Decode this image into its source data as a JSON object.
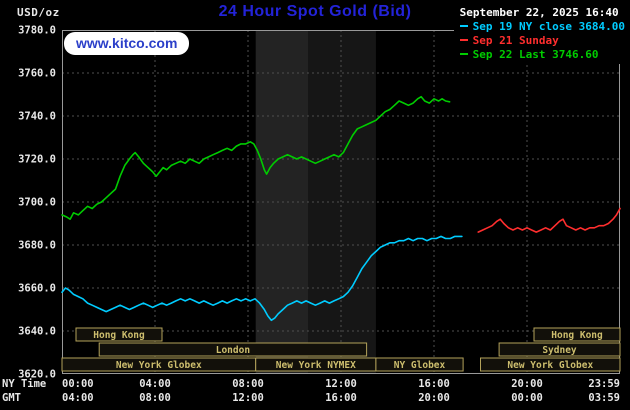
{
  "header": {
    "unit_label": "USD/oz",
    "title": "24 Hour Spot Gold (Bid)",
    "datetime": "September 22, 2025 16:40",
    "watermark": "www.kitco.com"
  },
  "legend": [
    {
      "label": "Sep 19 NY close 3684.00",
      "color": "#00ccff"
    },
    {
      "label": "Sep 21 Sunday",
      "color": "#ff2e2e"
    },
    {
      "label": "Sep 22 Last 3746.60",
      "color": "#00cc00"
    }
  ],
  "axes": {
    "y_ticks": [
      "3780.0",
      "3760.0",
      "3740.0",
      "3720.0",
      "3700.0",
      "3680.0",
      "3660.0",
      "3640.0",
      "3620.0"
    ],
    "x_ny_axis_label": "NY Time",
    "x_gmt_axis_label": "GMT",
    "x_ny_ticks": [
      "00:00",
      "04:00",
      "08:00",
      "12:00",
      "16:00",
      "20:00",
      "23:59"
    ],
    "x_gmt_ticks": [
      "04:00",
      "08:00",
      "12:00",
      "16:00",
      "20:00",
      "00:00",
      "03:59"
    ]
  },
  "sessions": [
    {
      "label": "Hong Kong",
      "row": 0,
      "start_hour": 0.6,
      "end_hour": 4.3
    },
    {
      "label": "Hong Kong",
      "row": 0,
      "start_hour": 20.3,
      "end_hour": 24
    },
    {
      "label": "London",
      "row": 1,
      "start_hour": 1.6,
      "end_hour": 13.1
    },
    {
      "label": "Sydney",
      "row": 1,
      "start_hour": 18.8,
      "end_hour": 24
    },
    {
      "label": "New York Globex",
      "row": 2,
      "start_hour": 0.0,
      "end_hour": 8.33
    },
    {
      "label": "New York NYMEX",
      "row": 2,
      "start_hour": 8.33,
      "end_hour": 13.5
    },
    {
      "label": "NY Globex",
      "row": 2,
      "start_hour": 13.5,
      "end_hour": 17.25
    },
    {
      "label": "New York Globex",
      "row": 2,
      "start_hour": 18.0,
      "end_hour": 24
    }
  ],
  "colors": {
    "background": "#000000",
    "title": "#2323d8",
    "watermark_text": "#2b3fc9",
    "watermark_bg": "#ffffff",
    "axis_text": "#e8e8e8",
    "datetime_text": "#ffffff",
    "grid": "#4f4f4f",
    "plot_border": "#999999",
    "session_border": "#b3a25a",
    "session_text": "#cdbe6e",
    "session_fill": "#12100a"
  },
  "chart_data": {
    "type": "line",
    "title": "24 Hour Spot Gold (Bid)",
    "ylabel": "USD/oz",
    "xlabel": "NY Time / GMT",
    "ylim": [
      3620,
      3780
    ],
    "xlim_hours": [
      0,
      24
    ],
    "grid": true,
    "legend_position": "top-right",
    "y_gridlines": [
      3640,
      3660,
      3680,
      3700,
      3720,
      3740,
      3760
    ],
    "x_gridline_hours": [
      4,
      8,
      12,
      16,
      20
    ],
    "x_tick_hours": [
      0,
      4,
      8,
      12,
      16,
      20,
      24
    ],
    "bands": [
      {
        "start_hour": 8.33,
        "end_hour": 10.58,
        "color": "#232323"
      },
      {
        "start_hour": 10.58,
        "end_hour": 13.5,
        "color": "#161616"
      }
    ],
    "series": [
      {
        "id": "sep19",
        "name": "Sep 19 NY close",
        "color": "#00ccff",
        "close": 3684.0,
        "points": [
          [
            0,
            3658
          ],
          [
            0.15,
            3660
          ],
          [
            0.3,
            3659
          ],
          [
            0.5,
            3657
          ],
          [
            0.7,
            3656
          ],
          [
            0.9,
            3655
          ],
          [
            1.1,
            3653
          ],
          [
            1.3,
            3652
          ],
          [
            1.5,
            3651
          ],
          [
            1.7,
            3650
          ],
          [
            1.9,
            3649
          ],
          [
            2.1,
            3650
          ],
          [
            2.3,
            3651
          ],
          [
            2.5,
            3652
          ],
          [
            2.7,
            3651
          ],
          [
            2.9,
            3650
          ],
          [
            3.1,
            3651
          ],
          [
            3.3,
            3652
          ],
          [
            3.5,
            3653
          ],
          [
            3.7,
            3652
          ],
          [
            3.9,
            3651
          ],
          [
            4.1,
            3652
          ],
          [
            4.3,
            3653
          ],
          [
            4.5,
            3652
          ],
          [
            4.7,
            3653
          ],
          [
            4.9,
            3654
          ],
          [
            5.1,
            3655
          ],
          [
            5.3,
            3654
          ],
          [
            5.5,
            3655
          ],
          [
            5.7,
            3654
          ],
          [
            5.9,
            3653
          ],
          [
            6.1,
            3654
          ],
          [
            6.3,
            3653
          ],
          [
            6.5,
            3652
          ],
          [
            6.7,
            3653
          ],
          [
            6.9,
            3654
          ],
          [
            7.1,
            3653
          ],
          [
            7.3,
            3654
          ],
          [
            7.5,
            3655
          ],
          [
            7.7,
            3654
          ],
          [
            7.9,
            3655
          ],
          [
            8.1,
            3654
          ],
          [
            8.3,
            3655
          ],
          [
            8.5,
            3653
          ],
          [
            8.7,
            3650
          ],
          [
            8.85,
            3647
          ],
          [
            9,
            3645
          ],
          [
            9.15,
            3646
          ],
          [
            9.3,
            3648
          ],
          [
            9.5,
            3650
          ],
          [
            9.7,
            3652
          ],
          [
            9.9,
            3653
          ],
          [
            10.1,
            3654
          ],
          [
            10.3,
            3653
          ],
          [
            10.5,
            3654
          ],
          [
            10.7,
            3653
          ],
          [
            10.9,
            3652
          ],
          [
            11.1,
            3653
          ],
          [
            11.3,
            3654
          ],
          [
            11.5,
            3653
          ],
          [
            11.7,
            3654
          ],
          [
            11.9,
            3655
          ],
          [
            12.1,
            3656
          ],
          [
            12.3,
            3658
          ],
          [
            12.5,
            3661
          ],
          [
            12.7,
            3665
          ],
          [
            12.9,
            3669
          ],
          [
            13.1,
            3672
          ],
          [
            13.3,
            3675
          ],
          [
            13.5,
            3677
          ],
          [
            13.7,
            3679
          ],
          [
            13.9,
            3680
          ],
          [
            14.1,
            3681
          ],
          [
            14.3,
            3681
          ],
          [
            14.5,
            3682
          ],
          [
            14.7,
            3682
          ],
          [
            14.9,
            3683
          ],
          [
            15.1,
            3682
          ],
          [
            15.3,
            3683
          ],
          [
            15.5,
            3683
          ],
          [
            15.7,
            3682
          ],
          [
            15.9,
            3683
          ],
          [
            16.1,
            3683
          ],
          [
            16.3,
            3684
          ],
          [
            16.5,
            3683
          ],
          [
            16.7,
            3683
          ],
          [
            16.9,
            3684
          ],
          [
            17.1,
            3684
          ],
          [
            17.2,
            3684
          ]
        ]
      },
      {
        "id": "sep21",
        "name": "Sep 21 Sunday",
        "color": "#ff2e2e",
        "points": [
          [
            17.9,
            3686
          ],
          [
            18.1,
            3687
          ],
          [
            18.3,
            3688
          ],
          [
            18.5,
            3689
          ],
          [
            18.7,
            3691
          ],
          [
            18.85,
            3692
          ],
          [
            19,
            3690
          ],
          [
            19.2,
            3688
          ],
          [
            19.4,
            3687
          ],
          [
            19.6,
            3688
          ],
          [
            19.8,
            3687
          ],
          [
            20,
            3688
          ],
          [
            20.2,
            3687
          ],
          [
            20.4,
            3686
          ],
          [
            20.6,
            3687
          ],
          [
            20.8,
            3688
          ],
          [
            21,
            3687
          ],
          [
            21.2,
            3689
          ],
          [
            21.4,
            3691
          ],
          [
            21.55,
            3692
          ],
          [
            21.7,
            3689
          ],
          [
            21.9,
            3688
          ],
          [
            22.1,
            3687
          ],
          [
            22.3,
            3688
          ],
          [
            22.5,
            3687
          ],
          [
            22.7,
            3688
          ],
          [
            22.9,
            3688
          ],
          [
            23.1,
            3689
          ],
          [
            23.3,
            3689
          ],
          [
            23.5,
            3690
          ],
          [
            23.7,
            3692
          ],
          [
            23.85,
            3694
          ],
          [
            24,
            3697
          ]
        ]
      },
      {
        "id": "sep22",
        "name": "Sep 22 Last",
        "color": "#00cc00",
        "last": 3746.6,
        "points": [
          [
            0,
            3694
          ],
          [
            0.2,
            3693
          ],
          [
            0.35,
            3692
          ],
          [
            0.5,
            3695
          ],
          [
            0.7,
            3694
          ],
          [
            0.9,
            3696
          ],
          [
            1.1,
            3698
          ],
          [
            1.3,
            3697
          ],
          [
            1.5,
            3699
          ],
          [
            1.7,
            3700
          ],
          [
            1.9,
            3702
          ],
          [
            2.1,
            3704
          ],
          [
            2.3,
            3706
          ],
          [
            2.5,
            3712
          ],
          [
            2.7,
            3717
          ],
          [
            2.9,
            3720
          ],
          [
            3.05,
            3722
          ],
          [
            3.15,
            3723
          ],
          [
            3.3,
            3721
          ],
          [
            3.5,
            3718
          ],
          [
            3.7,
            3716
          ],
          [
            3.9,
            3714
          ],
          [
            4.05,
            3712
          ],
          [
            4.2,
            3714
          ],
          [
            4.35,
            3716
          ],
          [
            4.5,
            3715
          ],
          [
            4.7,
            3717
          ],
          [
            4.9,
            3718
          ],
          [
            5.1,
            3719
          ],
          [
            5.3,
            3718
          ],
          [
            5.5,
            3720
          ],
          [
            5.7,
            3719
          ],
          [
            5.9,
            3718
          ],
          [
            6.1,
            3720
          ],
          [
            6.3,
            3721
          ],
          [
            6.5,
            3722
          ],
          [
            6.7,
            3723
          ],
          [
            6.9,
            3724
          ],
          [
            7.1,
            3725
          ],
          [
            7.3,
            3724
          ],
          [
            7.5,
            3726
          ],
          [
            7.7,
            3727
          ],
          [
            7.9,
            3727
          ],
          [
            8.1,
            3728
          ],
          [
            8.25,
            3727
          ],
          [
            8.4,
            3724
          ],
          [
            8.55,
            3720
          ],
          [
            8.7,
            3715
          ],
          [
            8.8,
            3713
          ],
          [
            8.95,
            3716
          ],
          [
            9.1,
            3718
          ],
          [
            9.3,
            3720
          ],
          [
            9.5,
            3721
          ],
          [
            9.7,
            3722
          ],
          [
            9.9,
            3721
          ],
          [
            10.1,
            3720
          ],
          [
            10.3,
            3721
          ],
          [
            10.5,
            3720
          ],
          [
            10.7,
            3719
          ],
          [
            10.9,
            3718
          ],
          [
            11.1,
            3719
          ],
          [
            11.3,
            3720
          ],
          [
            11.5,
            3721
          ],
          [
            11.7,
            3722
          ],
          [
            11.9,
            3721
          ],
          [
            12.1,
            3723
          ],
          [
            12.3,
            3727
          ],
          [
            12.5,
            3731
          ],
          [
            12.7,
            3734
          ],
          [
            12.9,
            3735
          ],
          [
            13.1,
            3736
          ],
          [
            13.3,
            3737
          ],
          [
            13.5,
            3738
          ],
          [
            13.7,
            3740
          ],
          [
            13.9,
            3742
          ],
          [
            14.1,
            3743
          ],
          [
            14.3,
            3745
          ],
          [
            14.5,
            3747
          ],
          [
            14.7,
            3746
          ],
          [
            14.9,
            3745
          ],
          [
            15.1,
            3746
          ],
          [
            15.3,
            3748
          ],
          [
            15.45,
            3749
          ],
          [
            15.6,
            3747
          ],
          [
            15.8,
            3746
          ],
          [
            16,
            3748
          ],
          [
            16.2,
            3747
          ],
          [
            16.35,
            3748
          ],
          [
            16.5,
            3747
          ],
          [
            16.67,
            3746.6
          ]
        ]
      }
    ]
  }
}
